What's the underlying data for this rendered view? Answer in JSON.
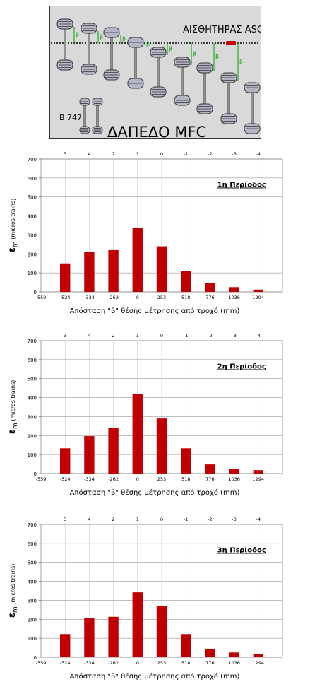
{
  "diagram": {
    "sensor_label": "ΑΙΣΘΗΤΗΡΑΣ ASG",
    "floor_label": "ΔΑΠΕΔΟ MFC",
    "aircraft_label": "B 747",
    "beta_label": "β",
    "colors": {
      "background": "#d9d9d9",
      "arrows": "#00a000",
      "sensor": "#cc0000",
      "wheel": "#b5b5c8"
    }
  },
  "chart_data": [
    {
      "type": "bar",
      "title": "1η Περίοδος",
      "xlabel": "Απόσταση \"β\" θέσης μέτρησης από τροχό (mm)",
      "ylabel": "ε",
      "ylabel_sub": "m",
      "ylabel_units": "(micros trains)",
      "x_tick_labels": [
        "-559",
        "-524",
        "-334",
        "-262",
        "0",
        "253",
        "518",
        "776",
        "1036",
        "1294"
      ],
      "top_tick_labels": [
        "3",
        "4",
        "2",
        "1",
        "0",
        "-1",
        "-2",
        "-3",
        "-4"
      ],
      "categories": [
        "-524",
        "-334",
        "-262",
        "0",
        "253",
        "518",
        "776",
        "1036",
        "1294"
      ],
      "values": [
        150,
        212,
        220,
        337,
        240,
        110,
        45,
        25,
        12
      ],
      "ylim": [
        0,
        700
      ],
      "yticks": [
        0,
        100,
        200,
        300,
        400,
        500,
        600,
        700
      ],
      "grid": true,
      "bar_color": "#c00000"
    },
    {
      "type": "bar",
      "title": "2η Περίοδος",
      "xlabel": "Απόσταση \"β\" θέσης μέτρησης από τροχό (mm)",
      "ylabel": "ε",
      "ylabel_sub": "m",
      "ylabel_units": "(micros trains)",
      "x_tick_labels": [
        "-559",
        "-524",
        "-334",
        "-262",
        "0",
        "253",
        "518",
        "776",
        "1036",
        "1294"
      ],
      "top_tick_labels": [
        "3",
        "4",
        "2",
        "1",
        "0",
        "-1",
        "-2",
        "-3",
        "-4"
      ],
      "categories": [
        "-524",
        "-334",
        "-262",
        "0",
        "253",
        "518",
        "776",
        "1036",
        "1294"
      ],
      "values": [
        133,
        197,
        240,
        418,
        290,
        133,
        48,
        25,
        18
      ],
      "ylim": [
        0,
        700
      ],
      "yticks": [
        0,
        100,
        200,
        300,
        400,
        500,
        600,
        700
      ],
      "grid": true,
      "bar_color": "#c00000"
    },
    {
      "type": "bar",
      "title": "3η Περίοδος",
      "xlabel": "Απόσταση \"β\" θέσης μέτρησης από τροχό (mm)",
      "ylabel": "ε",
      "ylabel_sub": "m",
      "ylabel_units": "(micros trains)",
      "x_tick_labels": [
        "-559",
        "-524",
        "-334",
        "-262",
        "0",
        "253",
        "518",
        "776",
        "1036",
        "1294"
      ],
      "top_tick_labels": [
        "3",
        "4",
        "2",
        "1",
        "0",
        "-1",
        "-2",
        "-3",
        "-4"
      ],
      "categories": [
        "-524",
        "-334",
        "-262",
        "0",
        "253",
        "518",
        "776",
        "1036",
        "1294"
      ],
      "values": [
        122,
        208,
        213,
        342,
        272,
        122,
        45,
        25,
        18
      ],
      "ylim": [
        0,
        700
      ],
      "yticks": [
        0,
        100,
        200,
        300,
        400,
        500,
        600,
        700
      ],
      "grid": true,
      "bar_color": "#c00000"
    }
  ]
}
